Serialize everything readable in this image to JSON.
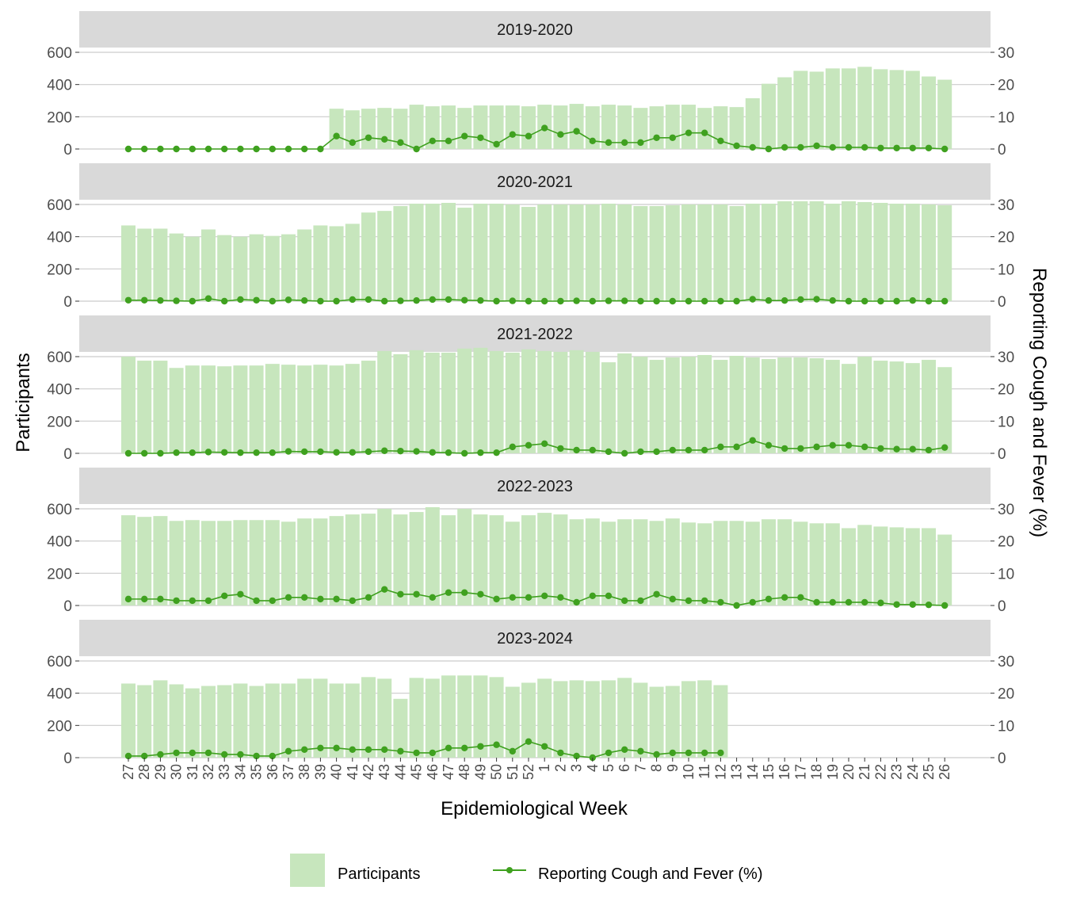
{
  "colors": {
    "bar": "#c7e6bd",
    "line": "#3fa11f",
    "strip": "#d9d9d9",
    "grid": "#cccccc",
    "tick_text": "#4d4d4d"
  },
  "chart_data": {
    "type": "bar",
    "xlabel": "Epidemiological Week",
    "ylabel": "Participants",
    "y2label": "Reporting Cough and Fever (%)",
    "ylim": [
      0,
      600
    ],
    "y2lim": [
      0,
      30
    ],
    "yticks": [
      0,
      200,
      400,
      600
    ],
    "y2ticks": [
      0,
      10,
      20,
      30
    ],
    "grid": "horizontal",
    "legend_position": "bottom",
    "legend": {
      "bar": "Participants",
      "line": "Reporting Cough and Fever (%)"
    },
    "categories": [
      "27",
      "28",
      "29",
      "30",
      "31",
      "32",
      "33",
      "34",
      "35",
      "36",
      "37",
      "38",
      "39",
      "40",
      "41",
      "42",
      "43",
      "44",
      "45",
      "46",
      "47",
      "48",
      "49",
      "50",
      "51",
      "52",
      "1",
      "2",
      "3",
      "4",
      "5",
      "6",
      "7",
      "8",
      "9",
      "10",
      "11",
      "12",
      "13",
      "14",
      "15",
      "16",
      "17",
      "18",
      "19",
      "20",
      "21",
      "22",
      "23",
      "24",
      "25",
      "26"
    ],
    "panels": [
      {
        "label": "2019-2020",
        "participants": [
          null,
          null,
          null,
          null,
          null,
          null,
          null,
          null,
          null,
          null,
          null,
          null,
          null,
          250,
          240,
          250,
          255,
          250,
          275,
          265,
          270,
          255,
          270,
          270,
          270,
          265,
          275,
          270,
          280,
          265,
          275,
          270,
          255,
          265,
          275,
          275,
          255,
          265,
          260,
          315,
          405,
          445,
          485,
          480,
          500,
          500,
          510,
          495,
          490,
          485,
          450,
          430
        ],
        "cough_fever": [
          0,
          0,
          0,
          0,
          0,
          0,
          0,
          0,
          0,
          0,
          0,
          0,
          0,
          4,
          2,
          3.5,
          3,
          2,
          0,
          2.5,
          2.5,
          4,
          3.5,
          1.5,
          4.5,
          4,
          6.5,
          4.5,
          5.5,
          2.5,
          2,
          2,
          2,
          3.5,
          3.5,
          5,
          5,
          2.5,
          1,
          0.5,
          0,
          0.5,
          0.5,
          1,
          0.5,
          0.5,
          0.5,
          0.3,
          0.3,
          0.3,
          0.3,
          0
        ]
      },
      {
        "label": "2020-2021",
        "participants": [
          470,
          450,
          450,
          420,
          400,
          445,
          410,
          400,
          415,
          405,
          415,
          445,
          470,
          465,
          480,
          550,
          560,
          590,
          605,
          605,
          610,
          580,
          605,
          605,
          600,
          585,
          600,
          600,
          600,
          600,
          605,
          600,
          590,
          590,
          595,
          600,
          600,
          600,
          590,
          605,
          605,
          620,
          620,
          620,
          605,
          620,
          615,
          610,
          605,
          605,
          600,
          595
        ],
        "cough_fever": [
          0.3,
          0.3,
          0.2,
          0.1,
          0,
          0.8,
          0,
          0.5,
          0.3,
          0,
          0.4,
          0.2,
          0,
          0,
          0.5,
          0.5,
          0,
          0.1,
          0.2,
          0.5,
          0.5,
          0.3,
          0.2,
          0,
          0.1,
          0,
          0,
          0,
          0.1,
          0,
          0.1,
          0.1,
          0,
          0,
          0,
          0,
          0,
          0,
          0,
          0.6,
          0.2,
          0.2,
          0.5,
          0.6,
          0.2,
          0,
          0,
          0,
          0,
          0.2,
          0,
          0
        ]
      },
      {
        "label": "2021-2022",
        "participants": [
          600,
          575,
          575,
          530,
          545,
          545,
          540,
          545,
          545,
          555,
          550,
          545,
          550,
          545,
          555,
          575,
          635,
          615,
          640,
          625,
          625,
          650,
          655,
          635,
          625,
          645,
          635,
          630,
          640,
          630,
          565,
          620,
          600,
          580,
          595,
          600,
          610,
          580,
          605,
          595,
          585,
          595,
          595,
          590,
          580,
          555,
          600,
          575,
          570,
          560,
          580,
          535
        ],
        "cough_fever": [
          0,
          0,
          0,
          0.2,
          0.2,
          0.4,
          0.3,
          0.2,
          0.2,
          0.2,
          0.6,
          0.5,
          0.5,
          0.3,
          0.3,
          0.5,
          0.8,
          0.7,
          0.6,
          0.3,
          0.2,
          0,
          0.2,
          0.2,
          2,
          2.5,
          3,
          1.5,
          1,
          1,
          0.5,
          0,
          0.5,
          0.5,
          1,
          1,
          1,
          2,
          2,
          4,
          2.5,
          1.5,
          1.5,
          2,
          2.5,
          2.5,
          2,
          1.5,
          1.3,
          1.3,
          1,
          1.8
        ]
      },
      {
        "label": "2022-2023",
        "participants": [
          560,
          550,
          555,
          525,
          530,
          525,
          525,
          530,
          530,
          530,
          520,
          540,
          540,
          555,
          565,
          570,
          600,
          565,
          580,
          610,
          560,
          600,
          565,
          560,
          520,
          560,
          575,
          565,
          535,
          540,
          520,
          535,
          535,
          525,
          540,
          515,
          510,
          525,
          525,
          520,
          535,
          535,
          520,
          510,
          510,
          480,
          500,
          490,
          485,
          480,
          480,
          440
        ],
        "cough_fever": [
          2,
          2,
          2,
          1.5,
          1.5,
          1.5,
          3,
          3.5,
          1.5,
          1.5,
          2.5,
          2.5,
          2,
          2,
          1.5,
          2.5,
          5,
          3.5,
          3.5,
          2.5,
          4,
          4,
          3.5,
          2,
          2.5,
          2.5,
          3,
          2.5,
          1,
          3,
          3,
          1.5,
          1.5,
          3.5,
          2,
          1.5,
          1.5,
          1,
          0,
          1,
          2,
          2.5,
          2.5,
          1,
          1,
          1,
          1,
          0.8,
          0.3,
          0.3,
          0.2,
          0
        ]
      },
      {
        "label": "2023-2024",
        "participants": [
          460,
          450,
          480,
          455,
          430,
          445,
          450,
          460,
          445,
          460,
          460,
          490,
          490,
          460,
          460,
          500,
          490,
          365,
          495,
          490,
          510,
          510,
          510,
          500,
          440,
          465,
          490,
          475,
          480,
          475,
          480,
          495,
          465,
          440,
          445,
          475,
          480,
          450,
          null,
          null,
          null,
          null,
          null,
          null,
          null,
          null,
          null,
          null,
          null,
          null,
          null,
          null
        ],
        "cough_fever": [
          0.5,
          0.5,
          1,
          1.5,
          1.5,
          1.5,
          1,
          1,
          0.5,
          0.5,
          2,
          2.5,
          3,
          3,
          2.5,
          2.5,
          2.5,
          2,
          1.5,
          1.5,
          3,
          3,
          3.5,
          4,
          2,
          5,
          3.5,
          1.5,
          0.5,
          0,
          1.5,
          2.5,
          2,
          1,
          1.5,
          1.5,
          1.5,
          1.5,
          null,
          null,
          null,
          null,
          null,
          null,
          null,
          null,
          null,
          null,
          null,
          null,
          null,
          null
        ]
      }
    ]
  }
}
